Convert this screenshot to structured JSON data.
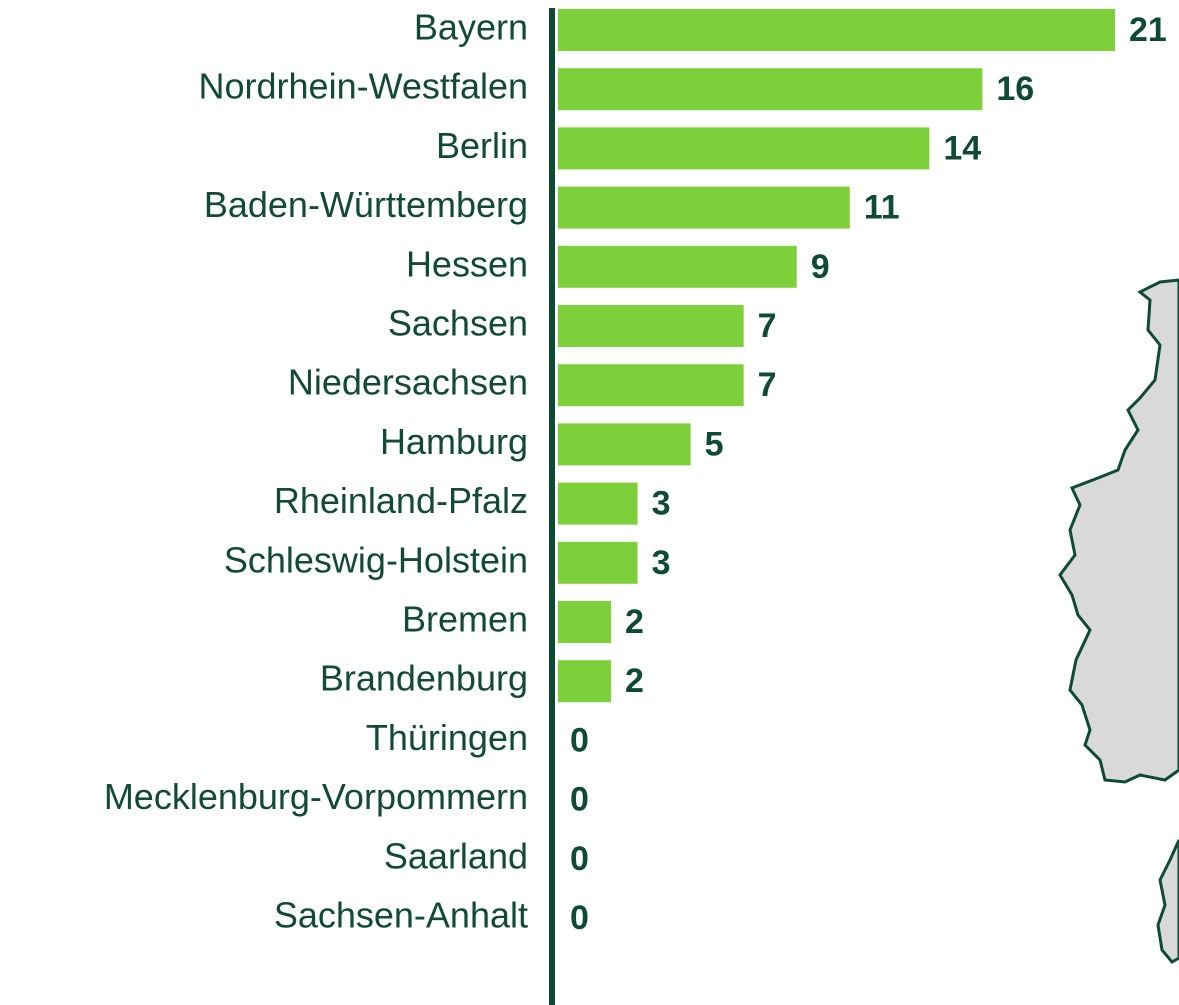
{
  "chart_data": {
    "type": "bar",
    "orientation": "horizontal",
    "categories": [
      "Bayern",
      "Nordrhein-Westfalen",
      "Berlin",
      "Baden-Württemberg",
      "Hessen",
      "Sachsen",
      "Niedersachsen",
      "Hamburg",
      "Rheinland-Pfalz",
      "Schleswig-Holstein",
      "Bremen",
      "Brandenburg",
      "Thüringen",
      "Mecklenburg-Vorpommern",
      "Saarland",
      "Sachsen-Anhalt"
    ],
    "values": [
      21,
      16,
      14,
      11,
      9,
      7,
      7,
      5,
      3,
      3,
      2,
      2,
      0,
      0,
      0,
      0
    ],
    "color": "#7ed03a"
  }
}
